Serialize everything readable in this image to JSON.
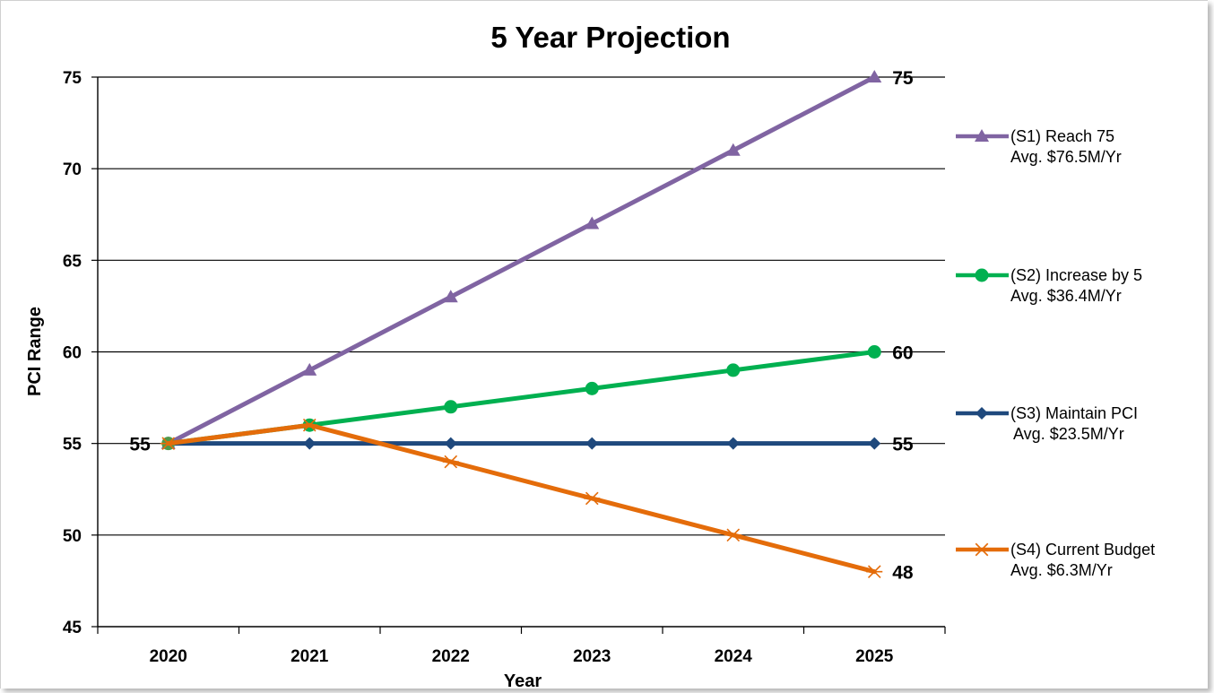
{
  "chart_data": {
    "type": "line",
    "title": "5 Year Projection",
    "xlabel": "Year",
    "ylabel": "PCI Range",
    "categories": [
      "2020",
      "2021",
      "2022",
      "2023",
      "2024",
      "2025"
    ],
    "ylim": [
      45,
      75
    ],
    "yticks": [
      45,
      50,
      55,
      60,
      65,
      70,
      75
    ],
    "grid": "horizontal major gridlines",
    "legend_position": "right",
    "series": [
      {
        "name": "(S1) Reach 75",
        "subtitle": "Avg. $76.5M/Yr",
        "values": [
          55,
          59,
          63,
          67,
          71,
          75
        ],
        "color": "#8064A2",
        "marker": "triangle"
      },
      {
        "name": "(S2) Increase by 5",
        "subtitle": "Avg. $36.4M/Yr",
        "values": [
          55,
          56,
          57,
          58,
          59,
          60
        ],
        "color": "#00B050",
        "marker": "circle"
      },
      {
        "name": "(S3) Maintain PCI",
        "subtitle": "Avg. $23.5M/Yr",
        "values": [
          55,
          55,
          55,
          55,
          55,
          55
        ],
        "color": "#1F497D",
        "marker": "diamond"
      },
      {
        "name": "(S4) Current Budget",
        "subtitle": "Avg. $6.3M/Yr",
        "values": [
          55,
          56,
          54,
          52,
          50,
          48
        ],
        "color": "#E46C0A",
        "marker": "star"
      }
    ],
    "annotations": [
      {
        "text": "55",
        "series": 2,
        "point": 0
      },
      {
        "text": "75",
        "series": 0,
        "point": 5
      },
      {
        "text": "60",
        "series": 1,
        "point": 5
      },
      {
        "text": "55",
        "series": 2,
        "point": 5
      },
      {
        "text": "48",
        "series": 3,
        "point": 5
      }
    ]
  }
}
